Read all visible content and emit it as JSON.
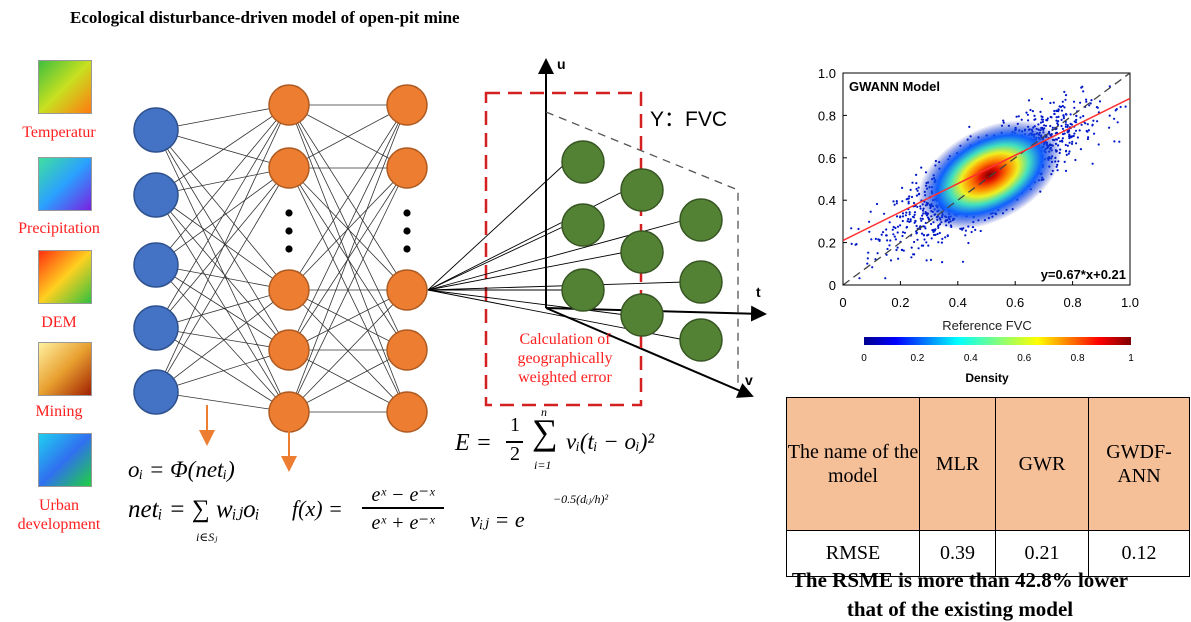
{
  "title": "Ecological disturbance-driven model of open-pit mine",
  "inputs": [
    {
      "label": "Temperatur",
      "colors": [
        "#3fbf3f",
        "#c8e020",
        "#ff7a10"
      ]
    },
    {
      "label": "Precipitation",
      "colors": [
        "#40e0a0",
        "#2aa0ff",
        "#7a20e0"
      ]
    },
    {
      "label": "DEM",
      "colors": [
        "#ff3010",
        "#ffd020",
        "#30c040"
      ]
    },
    {
      "label": "Mining",
      "colors": [
        "#fff0a0",
        "#e8a030",
        "#a02000"
      ]
    },
    {
      "label": "Urban development",
      "colors": [
        "#20d0f0",
        "#3070f0",
        "#20d040"
      ]
    }
  ],
  "output_label": "Y：FVC",
  "calc_label": [
    "Calculation of",
    "geographically",
    "weighted error"
  ],
  "axes": {
    "u": "u",
    "t": "t",
    "v": "v"
  },
  "formulas": {
    "o_i": "oᵢ = Φ(netᵢ)",
    "net_i": "netᵢ =  ∑ wᵢⱼoᵢ",
    "net_sub": "i∈Sⱼ",
    "fx_lhs": "f(x) =",
    "fx_num": "eˣ − e⁻ˣ",
    "fx_den": "eˣ + e⁻ˣ",
    "E_lhs": "E =",
    "E_frac_num": "1",
    "E_frac_den": "2",
    "E_sum_top": "n",
    "E_sum_bot": "i=1",
    "E_rhs": "vᵢ(tᵢ − oᵢ)²",
    "v_ij": "vᵢⱼ = e",
    "v_exp": "−0.5(dᵢⱼ/h)²"
  },
  "chart_data": {
    "type": "scatter",
    "title": "GWANN Model",
    "xlabel": "Reference FVC",
    "ylabel": "",
    "xlim": [
      0,
      1.0
    ],
    "ylim": [
      0,
      1.0
    ],
    "xticks": [
      "0",
      "0.2",
      "0.4",
      "0.6",
      "0.8",
      "1.0"
    ],
    "yticks": [
      "0",
      "0.2",
      "0.4",
      "0.6",
      "0.8",
      "1.0"
    ],
    "fit_label": "y=0.67*x+0.21",
    "fit": {
      "slope": 0.67,
      "intercept": 0.21
    },
    "density_center": [
      0.51,
      0.52
    ],
    "colorbar": {
      "label": "Density",
      "ticks": [
        "0",
        "0.2",
        "0.4",
        "0.6",
        "0.8",
        "1"
      ]
    }
  },
  "table": {
    "header": [
      "The name of the model",
      "MLR",
      "GWR",
      "GWDF-ANN"
    ],
    "row": [
      "RMSE",
      "0.39",
      "0.21",
      "0.12"
    ]
  },
  "conclusion": [
    "The RSME is more than 42.8% lower",
    "that of the existing model"
  ],
  "colors": {
    "blue_node": "#4472c4",
    "orange_node": "#ed7d31",
    "green_node": "#548235",
    "red": "#ff2020",
    "header_fill": "#f5bf98"
  }
}
